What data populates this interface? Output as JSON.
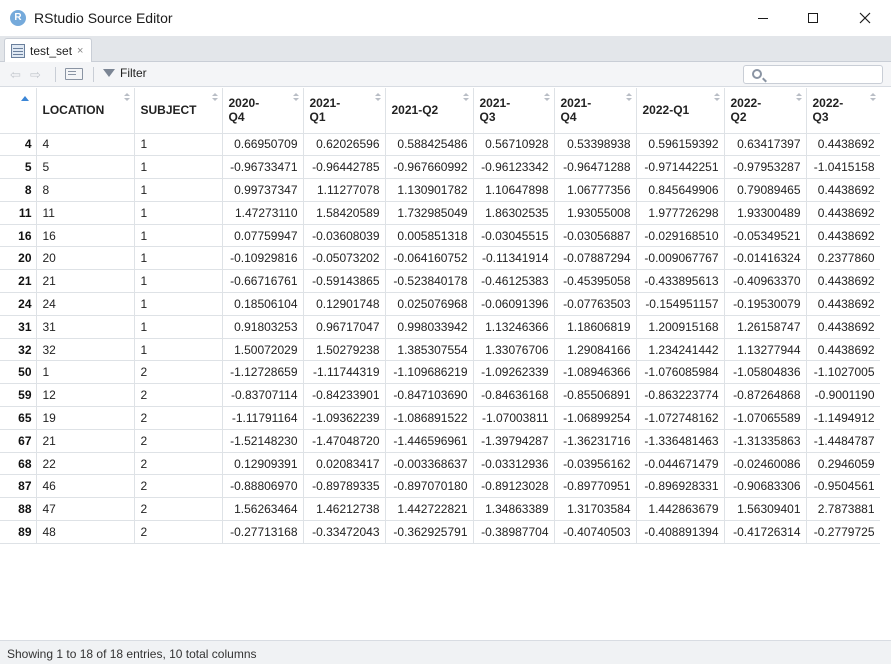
{
  "window": {
    "app_icon_letter": "R",
    "title": "RStudio Source Editor"
  },
  "tab": {
    "label": "test_set",
    "close_glyph": "×"
  },
  "toolbar": {
    "back_glyph": "⇦",
    "forward_glyph": "⇨",
    "filter_label": "Filter",
    "search_value": "",
    "search_placeholder": ""
  },
  "table": {
    "columns": [
      "",
      "LOCATION",
      "SUBJECT",
      "2020-\nQ4",
      "2021-\nQ1",
      "2021-Q2",
      "2021-\nQ3",
      "2021-\nQ4",
      "2022-Q1",
      "2022-\nQ2",
      "2022-\nQ3"
    ],
    "rows": [
      [
        "4",
        "4",
        "1",
        "0.66950709",
        "0.62026596",
        "0.588425486",
        "0.56710928",
        "0.53398938",
        "0.596159392",
        "0.63417397",
        "0.4438692"
      ],
      [
        "5",
        "5",
        "1",
        "-0.96733471",
        "-0.96442785",
        "-0.967660992",
        "-0.96123342",
        "-0.96471288",
        "-0.971442251",
        "-0.97953287",
        "-1.0415158"
      ],
      [
        "8",
        "8",
        "1",
        "0.99737347",
        "1.11277078",
        "1.130901782",
        "1.10647898",
        "1.06777356",
        "0.845649906",
        "0.79089465",
        "0.4438692"
      ],
      [
        "11",
        "11",
        "1",
        "1.47273110",
        "1.58420589",
        "1.732985049",
        "1.86302535",
        "1.93055008",
        "1.977726298",
        "1.93300489",
        "0.4438692"
      ],
      [
        "16",
        "16",
        "1",
        "0.07759947",
        "-0.03608039",
        "0.005851318",
        "-0.03045515",
        "-0.03056887",
        "-0.029168510",
        "-0.05349521",
        "0.4438692"
      ],
      [
        "20",
        "20",
        "1",
        "-0.10929816",
        "-0.05073202",
        "-0.064160752",
        "-0.11341914",
        "-0.07887294",
        "-0.009067767",
        "-0.01416324",
        "0.2377860"
      ],
      [
        "21",
        "21",
        "1",
        "-0.66716761",
        "-0.59143865",
        "-0.523840178",
        "-0.46125383",
        "-0.45395058",
        "-0.433895613",
        "-0.40963370",
        "0.4438692"
      ],
      [
        "24",
        "24",
        "1",
        "0.18506104",
        "0.12901748",
        "0.025076968",
        "-0.06091396",
        "-0.07763503",
        "-0.154951157",
        "-0.19530079",
        "0.4438692"
      ],
      [
        "31",
        "31",
        "1",
        "0.91803253",
        "0.96717047",
        "0.998033942",
        "1.13246366",
        "1.18606819",
        "1.200915168",
        "1.26158747",
        "0.4438692"
      ],
      [
        "32",
        "32",
        "1",
        "1.50072029",
        "1.50279238",
        "1.385307554",
        "1.33076706",
        "1.29084166",
        "1.234241442",
        "1.13277944",
        "0.4438692"
      ],
      [
        "50",
        "1",
        "2",
        "-1.12728659",
        "-1.11744319",
        "-1.109686219",
        "-1.09262339",
        "-1.08946366",
        "-1.076085984",
        "-1.05804836",
        "-1.1027005"
      ],
      [
        "59",
        "12",
        "2",
        "-0.83707114",
        "-0.84233901",
        "-0.847103690",
        "-0.84636168",
        "-0.85506891",
        "-0.863223774",
        "-0.87264868",
        "-0.9001190"
      ],
      [
        "65",
        "19",
        "2",
        "-1.11791164",
        "-1.09362239",
        "-1.086891522",
        "-1.07003811",
        "-1.06899254",
        "-1.072748162",
        "-1.07065589",
        "-1.1494912"
      ],
      [
        "67",
        "21",
        "2",
        "-1.52148230",
        "-1.47048720",
        "-1.446596961",
        "-1.39794287",
        "-1.36231716",
        "-1.336481463",
        "-1.31335863",
        "-1.4484787"
      ],
      [
        "68",
        "22",
        "2",
        "0.12909391",
        "0.02083417",
        "-0.003368637",
        "-0.03312936",
        "-0.03956162",
        "-0.044671479",
        "-0.02460086",
        "0.2946059"
      ],
      [
        "87",
        "46",
        "2",
        "-0.88806970",
        "-0.89789335",
        "-0.897070180",
        "-0.89123028",
        "-0.89770951",
        "-0.896928331",
        "-0.90683306",
        "-0.9504561"
      ],
      [
        "88",
        "47",
        "2",
        "1.56263464",
        "1.46212738",
        "1.442722821",
        "1.34863389",
        "1.31703584",
        "1.442863679",
        "1.56309401",
        "2.7873881"
      ],
      [
        "89",
        "48",
        "2",
        "-0.27713168",
        "-0.33472043",
        "-0.362925791",
        "-0.38987704",
        "-0.40740503",
        "-0.408891394",
        "-0.41726314",
        "-0.2779725"
      ]
    ]
  },
  "status": {
    "text": "Showing 1 to 18 of 18 entries, 10 total columns"
  },
  "icons": {
    "app": "r-logo-icon",
    "tab": "data-table-icon",
    "filter": "filter-icon",
    "search": "search-icon",
    "popout": "popout-icon"
  },
  "colors": {
    "r_logo": "#75aadb",
    "sort_active": "#3b86d6",
    "tabstrip_bg": "#e3e6ea",
    "grid_border": "#dee2e6"
  }
}
